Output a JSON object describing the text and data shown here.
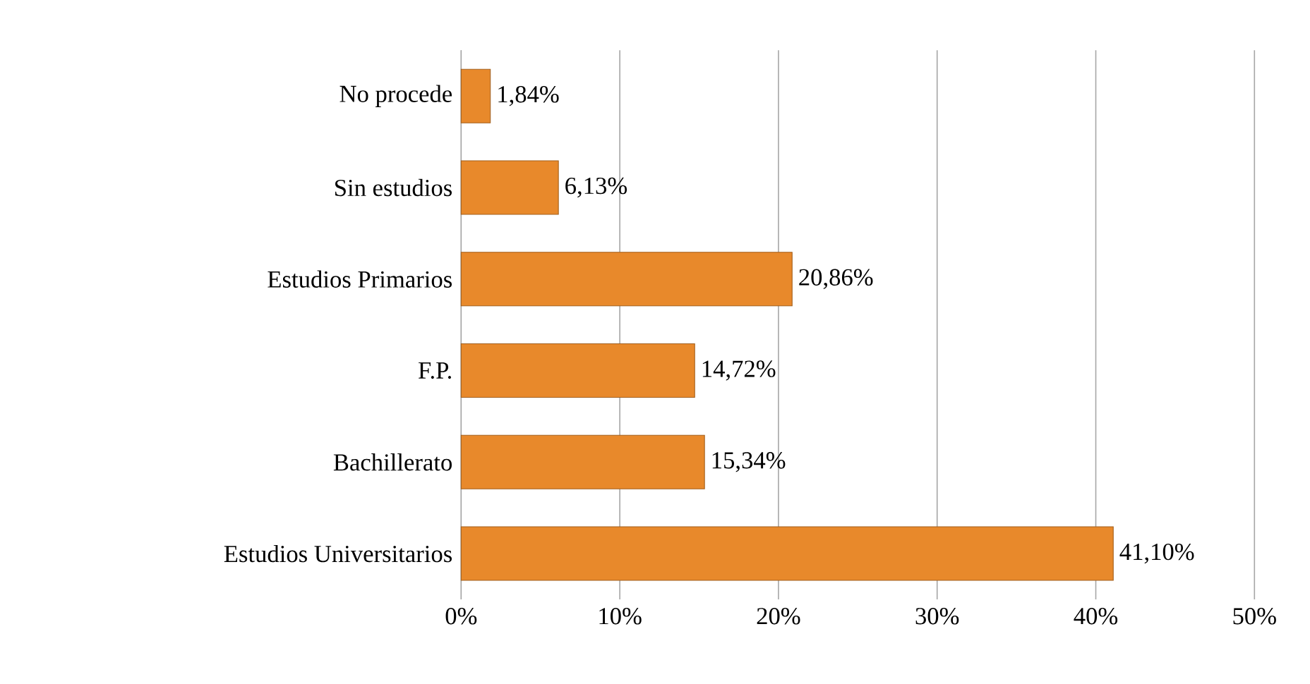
{
  "chart_data": {
    "type": "bar",
    "orientation": "horizontal",
    "categories": [
      "No procede",
      "Sin estudios",
      "Estudios Primarios",
      "F.P.",
      "Bachillerato",
      "Estudios Universitarios"
    ],
    "values": [
      1.84,
      6.13,
      20.86,
      14.72,
      15.34,
      41.1
    ],
    "value_labels": [
      "1,84%",
      "6,13%",
      "20,86%",
      "14,72%",
      "15,34%",
      "41,10%"
    ],
    "color": "#e8892b",
    "xlim": [
      0,
      50
    ],
    "xticks": [
      {
        "value": 0,
        "label": "0%"
      },
      {
        "value": 10,
        "label": "10%"
      },
      {
        "value": 20,
        "label": "20%"
      },
      {
        "value": 30,
        "label": "30%"
      },
      {
        "value": 40,
        "label": "40%"
      },
      {
        "value": 50,
        "label": "50%"
      }
    ],
    "grid": "x"
  }
}
